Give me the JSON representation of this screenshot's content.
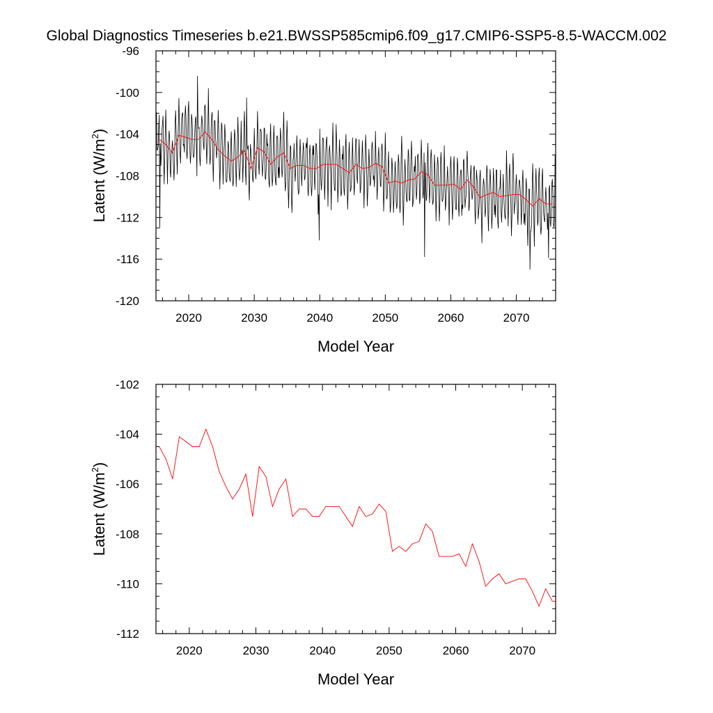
{
  "chart_data": {
    "title": "Global Diagnostics Timeseries b.e21.BWSSP585cmip6.f09_g17.CMIP6-SSP5-8.5-WACCM.002",
    "colors": {
      "monthly": "#000000",
      "annual": "#ff0000"
    },
    "panels": [
      {
        "type": "line",
        "xlabel": "Model Year",
        "ylabel": "Latent (W/m",
        "ylabel_sup": "2",
        "ylabel_close": ")",
        "xlim": [
          2015,
          2076
        ],
        "ylim": [
          -120,
          -96
        ],
        "xticks": [
          2020,
          2030,
          2040,
          2050,
          2060,
          2070
        ],
        "yticks": [
          -96,
          -100,
          -104,
          -108,
          -112,
          -116,
          -120
        ],
        "monthly_generator": {
          "start_year": 2015,
          "end_year": 2076,
          "samples_per_year": 12,
          "seasonal_amplitude": 2.9,
          "extremes": [
            [
              2015.6,
              -113.0
            ],
            [
              2021.3,
              -98.4
            ],
            [
              2023.0,
              -99.6
            ],
            [
              2028.8,
              -100.5
            ],
            [
              2039.9,
              -114.2
            ],
            [
              2056.0,
              -115.8
            ],
            [
              2072.1,
              -117.0
            ],
            [
              2074.9,
              -115.9
            ],
            [
              2075.9,
              -106.0
            ]
          ]
        },
        "series": [
          {
            "name": "monthly",
            "source": "monthly_generator"
          },
          {
            "name": "annual",
            "source": "annual"
          }
        ]
      },
      {
        "type": "line",
        "xlabel": "Model Year",
        "ylabel": "Latent (W/m",
        "ylabel_sup": "2",
        "ylabel_close": ")",
        "xlim": [
          2015,
          2075
        ],
        "ylim": [
          -112,
          -102
        ],
        "xticks": [
          2020,
          2030,
          2040,
          2050,
          2060,
          2070
        ],
        "yticks": [
          -102,
          -104,
          -106,
          -108,
          -110,
          -112
        ],
        "series": [
          {
            "name": "annual",
            "source": "annual"
          }
        ]
      }
    ],
    "annual": {
      "x": [
        2015.5,
        2016.5,
        2017.5,
        2018.5,
        2019.5,
        2020.5,
        2021.5,
        2022.5,
        2023.5,
        2024.5,
        2025.5,
        2026.5,
        2027.5,
        2028.5,
        2029.5,
        2030.5,
        2031.5,
        2032.5,
        2033.5,
        2034.5,
        2035.5,
        2036.5,
        2037.5,
        2038.5,
        2039.5,
        2040.5,
        2041.5,
        2042.5,
        2043.5,
        2044.5,
        2045.5,
        2046.5,
        2047.5,
        2048.5,
        2049.5,
        2050.5,
        2051.5,
        2052.5,
        2053.5,
        2054.5,
        2055.5,
        2056.5,
        2057.5,
        2058.5,
        2059.5,
        2060.5,
        2061.5,
        2062.5,
        2063.5,
        2064.5,
        2065.5,
        2066.5,
        2067.5,
        2068.5,
        2069.5,
        2070.5,
        2071.5,
        2072.5,
        2073.5,
        2074.5,
        2075.5
      ],
      "y": [
        -104.5,
        -105.0,
        -105.8,
        -104.1,
        -104.3,
        -104.5,
        -104.5,
        -103.8,
        -104.5,
        -105.5,
        -106.1,
        -106.6,
        -106.2,
        -105.6,
        -107.3,
        -105.3,
        -105.7,
        -106.9,
        -106.2,
        -105.8,
        -107.3,
        -107.0,
        -107.0,
        -107.3,
        -107.3,
        -106.9,
        -106.9,
        -106.9,
        -107.3,
        -107.7,
        -106.9,
        -107.3,
        -107.2,
        -106.8,
        -107.1,
        -108.7,
        -108.5,
        -108.7,
        -108.4,
        -108.3,
        -107.6,
        -107.9,
        -108.9,
        -108.9,
        -108.9,
        -108.8,
        -109.3,
        -108.4,
        -109.1,
        -110.1,
        -109.8,
        -109.6,
        -110.0,
        -109.9,
        -109.8,
        -109.8,
        -110.3,
        -110.9,
        -110.2,
        -110.7,
        -110.7
      ]
    }
  }
}
